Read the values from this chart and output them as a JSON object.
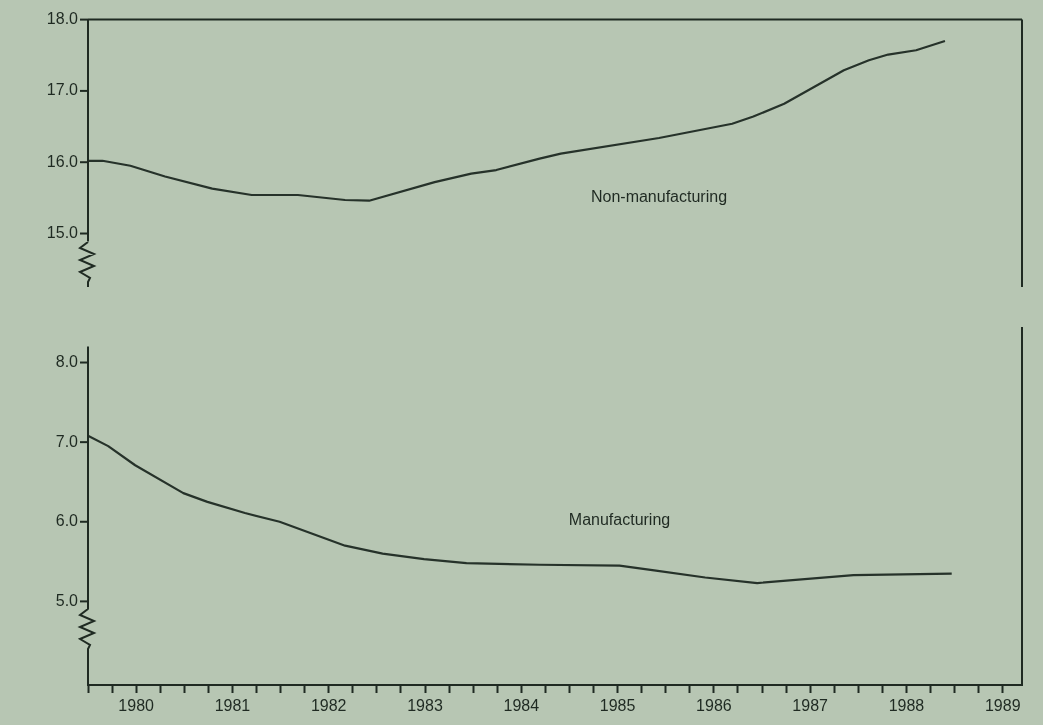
{
  "chart_data": [
    {
      "type": "line",
      "xlim": [
        1979.5,
        1989.2
      ],
      "ylim": [
        14.25,
        18
      ],
      "yticks": [
        {
          "value": 15,
          "label": "15.0"
        },
        {
          "value": 16,
          "label": "16.0"
        },
        {
          "value": 17,
          "label": "17.0"
        },
        {
          "value": 18,
          "label": "18.0"
        }
      ],
      "tick_labels": "y",
      "grid": false,
      "marker": "none",
      "series": [
        {
          "name": "Non-manufacturing",
          "color": "#26322a",
          "x": [
            1979.5,
            1979.65,
            1979.94,
            1980.3,
            1980.79,
            1981.2,
            1981.68,
            1982.17,
            1982.42,
            1983.1,
            1983.48,
            1983.74,
            1984.19,
            1984.41,
            1985.43,
            1986.19,
            1986.41,
            1986.73,
            1987.35,
            1987.61,
            1987.81,
            1988.1,
            1988.4
          ],
          "values": [
            16.02,
            16.02,
            15.95,
            15.8,
            15.63,
            15.54,
            15.54,
            15.47,
            15.46,
            15.72,
            15.84,
            15.89,
            16.05,
            16.12,
            16.34,
            16.54,
            16.64,
            16.82,
            17.29,
            17.43,
            17.51,
            17.57,
            17.7
          ]
        }
      ]
    },
    {
      "type": "line",
      "xlim": [
        1979.5,
        1989.2
      ],
      "ylim": [
        3.95,
        8.2
      ],
      "yticks": [
        {
          "value": 5,
          "label": "5.0"
        },
        {
          "value": 6,
          "label": "6.0"
        },
        {
          "value": 7,
          "label": "7.0"
        },
        {
          "value": 8,
          "label": "8.0"
        }
      ],
      "xticks": [
        {
          "value": 1979.5,
          "label": null
        },
        {
          "value": 1979.75,
          "label": null
        },
        1980,
        {
          "value": 1980.25,
          "label": null
        },
        {
          "value": 1980.5,
          "label": null
        },
        {
          "value": 1980.75,
          "label": null
        },
        1981,
        {
          "value": 1981.25,
          "label": null
        },
        {
          "value": 1981.5,
          "label": null
        },
        {
          "value": 1981.75,
          "label": null
        },
        1982,
        {
          "value": 1982.25,
          "label": null
        },
        {
          "value": 1982.5,
          "label": null
        },
        {
          "value": 1982.75,
          "label": null
        },
        1983,
        {
          "value": 1983.25,
          "label": null
        },
        {
          "value": 1983.5,
          "label": null
        },
        {
          "value": 1983.75,
          "label": null
        },
        1984,
        {
          "value": 1984.25,
          "label": null
        },
        {
          "value": 1984.5,
          "label": null
        },
        {
          "value": 1984.75,
          "label": null
        },
        1985,
        {
          "value": 1985.25,
          "label": null
        },
        {
          "value": 1985.5,
          "label": null
        },
        {
          "value": 1985.75,
          "label": null
        },
        1986,
        {
          "value": 1986.25,
          "label": null
        },
        {
          "value": 1986.5,
          "label": null
        },
        {
          "value": 1986.75,
          "label": null
        },
        1987,
        {
          "value": 1987.25,
          "label": null
        },
        {
          "value": 1987.5,
          "label": null
        },
        {
          "value": 1987.75,
          "label": null
        },
        1988,
        {
          "value": 1988.25,
          "label": null
        },
        {
          "value": 1988.5,
          "label": null
        },
        {
          "value": 1988.75,
          "label": null
        },
        1989
      ],
      "grid": false,
      "marker": "none",
      "series": [
        {
          "name": "Manufacturing",
          "color": "#26322a",
          "x": [
            1979.5,
            1979.71,
            1979.99,
            1980.49,
            1980.74,
            1981.13,
            1981.49,
            1982.17,
            1982.56,
            1982.99,
            1983.43,
            1984.19,
            1985.02,
            1985.38,
            1985.91,
            1986.45,
            1987.45,
            1988.47
          ],
          "values": [
            7.08,
            6.95,
            6.71,
            6.36,
            6.25,
            6.11,
            6.0,
            5.7,
            5.6,
            5.53,
            5.48,
            5.46,
            5.45,
            5.39,
            5.3,
            5.23,
            5.33,
            5.35
          ]
        }
      ]
    }
  ]
}
